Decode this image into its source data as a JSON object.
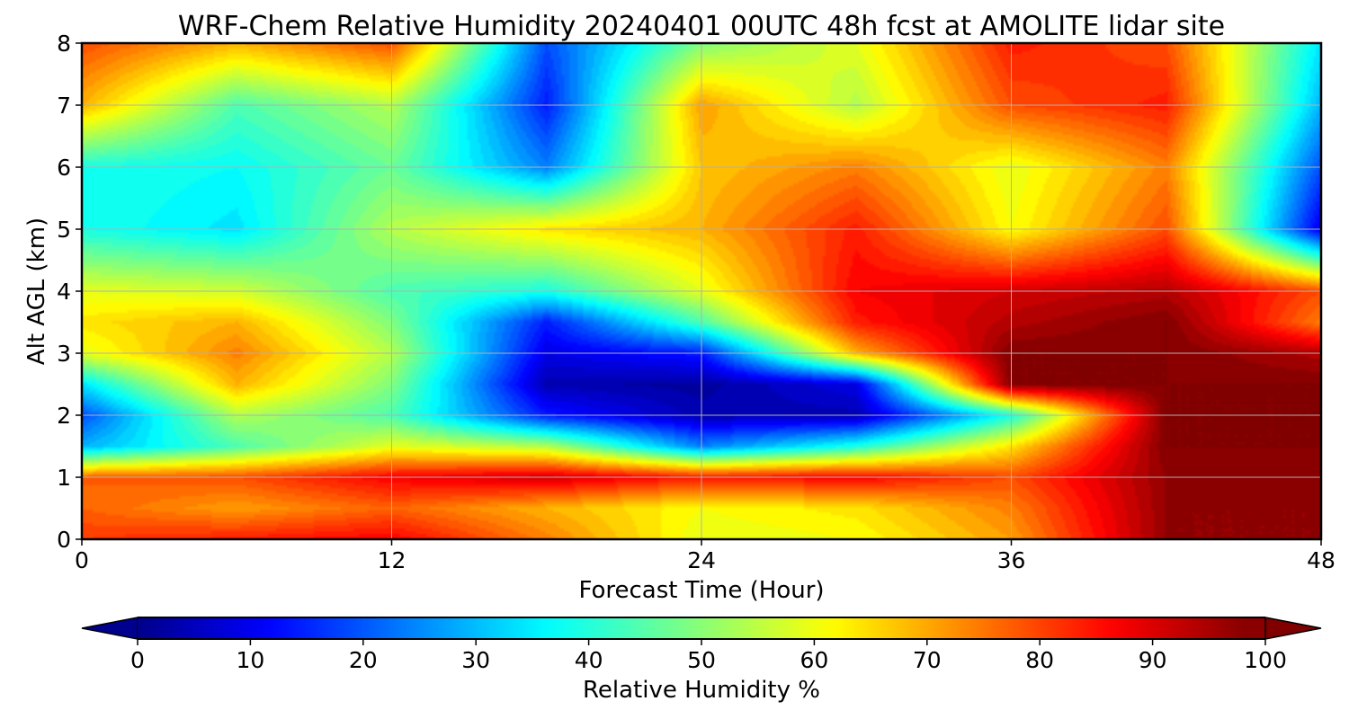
{
  "chart_data": {
    "type": "heatmap",
    "title": "WRF-Chem Relative Humidity 20240401 00UTC 48h fcst at AMOLITE lidar site",
    "xlabel": "Forecast Time (Hour)",
    "ylabel": "Alt AGL (km)",
    "xlim": [
      0,
      48
    ],
    "ylim": [
      0,
      8
    ],
    "x_ticks": [
      "0",
      "12",
      "24",
      "36",
      "48"
    ],
    "y_ticks": [
      "0",
      "1",
      "2",
      "3",
      "4",
      "5",
      "6",
      "7",
      "8"
    ],
    "grid": true,
    "colormap": "jet",
    "colorbar": {
      "label": "Relative Humidity %",
      "orientation": "horizontal",
      "placement": "bottom",
      "range": [
        0,
        100
      ],
      "extend": "both",
      "ticks": [
        "0",
        "10",
        "20",
        "30",
        "40",
        "50",
        "60",
        "70",
        "80",
        "90",
        "100"
      ]
    },
    "x": [
      0,
      6,
      12,
      18,
      24,
      30,
      36,
      42,
      48
    ],
    "y": [
      0,
      0.5,
      1,
      1.5,
      2,
      2.5,
      3,
      3.5,
      4,
      5,
      6,
      7,
      8
    ],
    "z": [
      [
        82,
        85,
        88,
        75,
        60,
        62,
        72,
        98,
        98
      ],
      [
        78,
        72,
        78,
        70,
        62,
        65,
        75,
        98,
        98
      ],
      [
        78,
        80,
        88,
        92,
        85,
        88,
        80,
        98,
        100
      ],
      [
        30,
        45,
        60,
        55,
        25,
        40,
        65,
        100,
        100
      ],
      [
        20,
        55,
        45,
        15,
        5,
        5,
        40,
        100,
        100
      ],
      [
        35,
        70,
        50,
        5,
        3,
        10,
        100,
        100,
        100
      ],
      [
        60,
        75,
        55,
        10,
        15,
        70,
        100,
        100,
        95
      ],
      [
        65,
        70,
        50,
        15,
        45,
        85,
        95,
        100,
        75
      ],
      [
        60,
        58,
        45,
        40,
        60,
        88,
        92,
        95,
        80
      ],
      [
        40,
        35,
        55,
        65,
        70,
        85,
        62,
        80,
        10
      ],
      [
        40,
        38,
        48,
        25,
        68,
        75,
        60,
        75,
        20
      ],
      [
        70,
        45,
        55,
        15,
        72,
        55,
        80,
        85,
        30
      ],
      [
        80,
        70,
        80,
        20,
        50,
        60,
        85,
        80,
        35
      ]
    ],
    "colors": {
      "under": "#00008f",
      "over": "#800000",
      "frame": "#000000",
      "grid": "#b0b0b0"
    }
  }
}
